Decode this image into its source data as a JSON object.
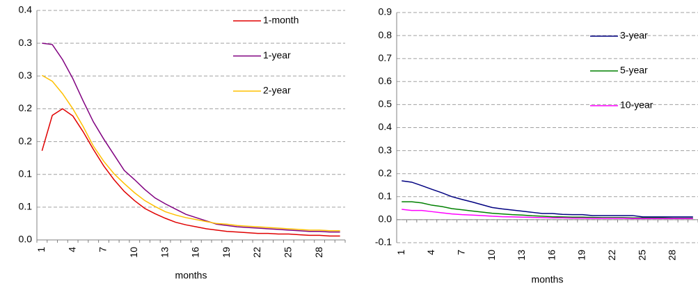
{
  "chart_data": [
    {
      "type": "line",
      "xlabel": "months",
      "categories": [
        "1",
        null,
        null,
        "4",
        null,
        null,
        "7",
        null,
        null,
        "10",
        null,
        null,
        "13",
        null,
        null,
        "16",
        null,
        null,
        "19",
        null,
        null,
        "22",
        null,
        null,
        "25",
        null,
        null,
        "28",
        null,
        null
      ],
      "ylim": [
        0,
        0.35
      ],
      "yticks": [
        {
          "value": 0,
          "label": "0.0"
        },
        {
          "value": 0.05,
          "label": "0.1"
        },
        0.1,
        {
          "value": 0.15,
          "label": "0.2"
        },
        0.2,
        {
          "value": 0.25,
          "label": "0.3"
        },
        0.3,
        {
          "value": 0.35,
          "label": "0.4"
        }
      ],
      "grid": true,
      "legend": "upper right",
      "series": [
        {
          "name": "1-month",
          "color": "#e00000",
          "values": [
            0.136,
            0.19,
            0.2,
            0.189,
            0.165,
            0.138,
            0.113,
            0.092,
            0.074,
            0.06,
            0.048,
            0.04,
            0.033,
            0.027,
            0.023,
            0.02,
            0.017,
            0.015,
            0.013,
            0.012,
            0.011,
            0.01,
            0.01,
            0.009,
            0.009,
            0.008,
            0.007,
            0.007,
            0.006,
            0.006
          ]
        },
        {
          "name": "1-year",
          "color": "#800080",
          "values": [
            0.3,
            0.298,
            0.275,
            0.246,
            0.212,
            0.18,
            0.154,
            0.13,
            0.106,
            0.092,
            0.077,
            0.064,
            0.055,
            0.047,
            0.039,
            0.034,
            0.029,
            0.024,
            0.022,
            0.02,
            0.019,
            0.018,
            0.017,
            0.016,
            0.015,
            0.014,
            0.013,
            0.013,
            0.012,
            0.012
          ]
        },
        {
          "name": "2-year",
          "color": "#ffc000",
          "values": [
            0.251,
            0.242,
            0.223,
            0.2,
            0.173,
            0.143,
            0.12,
            0.101,
            0.086,
            0.072,
            0.06,
            0.051,
            0.043,
            0.038,
            0.034,
            0.031,
            0.028,
            0.025,
            0.024,
            0.022,
            0.021,
            0.02,
            0.019,
            0.018,
            0.017,
            0.016,
            0.015,
            0.015,
            0.014,
            0.014
          ]
        }
      ]
    },
    {
      "type": "line",
      "xlabel": "months",
      "categories": [
        "1",
        null,
        null,
        "4",
        null,
        null,
        "7",
        null,
        null,
        "10",
        null,
        null,
        "13",
        null,
        null,
        "16",
        null,
        null,
        "19",
        null,
        null,
        "22",
        null,
        null,
        "25",
        null,
        null,
        "28",
        null,
        null
      ],
      "ylim": [
        -0.1,
        0.9
      ],
      "yticks": [
        -0.1,
        {
          "value": 0,
          "label": "0.0"
        },
        0.1,
        0.2,
        0.3,
        0.4,
        0.5,
        0.6,
        0.7,
        0.8,
        0.9
      ],
      "grid": true,
      "legend": "upper right",
      "series": [
        {
          "name": "3-year",
          "color": "#000080",
          "values": [
            0.169,
            0.163,
            0.148,
            0.132,
            0.117,
            0.1,
            0.088,
            0.077,
            0.065,
            0.053,
            0.047,
            0.042,
            0.037,
            0.032,
            0.027,
            0.027,
            0.023,
            0.022,
            0.022,
            0.018,
            0.018,
            0.018,
            0.018,
            0.018,
            0.012,
            0.012,
            0.012,
            0.012,
            0.012,
            0.012
          ]
        },
        {
          "name": "5-year",
          "color": "#008000",
          "values": [
            0.078,
            0.078,
            0.073,
            0.063,
            0.057,
            0.048,
            0.043,
            0.038,
            0.033,
            0.028,
            0.025,
            0.022,
            0.02,
            0.017,
            0.015,
            0.013,
            0.012,
            0.011,
            0.011,
            0.01,
            0.009,
            0.009,
            0.009,
            0.008,
            0.008,
            0.008,
            0.008,
            0.007,
            0.007,
            0.007
          ]
        },
        {
          "name": "10-year",
          "color": "#ff00ff",
          "values": [
            0.045,
            0.04,
            0.04,
            0.035,
            0.03,
            0.025,
            0.022,
            0.02,
            0.018,
            0.015,
            0.013,
            0.012,
            0.011,
            0.01,
            0.009,
            0.008,
            0.008,
            0.007,
            0.007,
            0.006,
            0.006,
            0.006,
            0.006,
            0.005,
            0.005,
            0.005,
            0.005,
            0.005,
            0.005,
            0.005
          ]
        }
      ]
    }
  ]
}
